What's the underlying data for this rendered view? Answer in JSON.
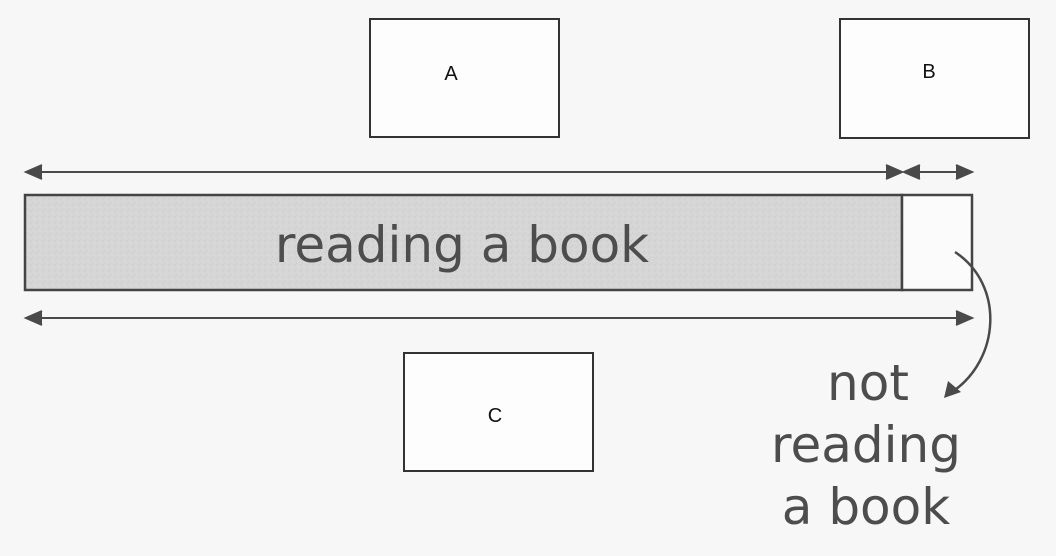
{
  "diagram": {
    "answer_boxes": [
      {
        "label": "A"
      },
      {
        "label": "B"
      },
      {
        "label": "C"
      }
    ],
    "bar": {
      "main_label": "reading a book",
      "minor_label_lines": [
        "not",
        "reading",
        "a book"
      ]
    },
    "colors": {
      "background": "#f7f7f7",
      "ink": "#4a4a4a",
      "box_border": "#333333",
      "bar_fill": "#d3d3d3",
      "bar_border": "#444444",
      "text_dark": "#111111",
      "text_big": "#4d4d4d"
    }
  }
}
